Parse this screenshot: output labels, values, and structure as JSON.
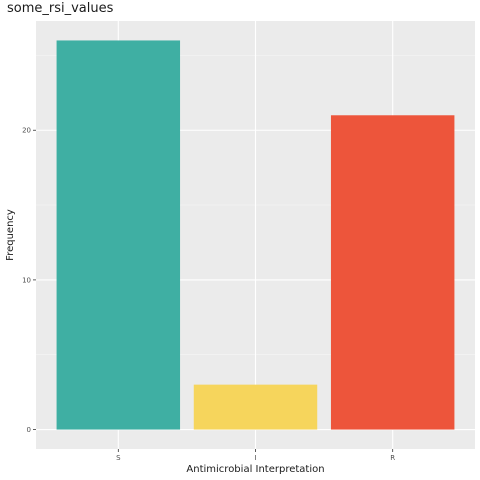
{
  "chart_data": {
    "type": "bar",
    "title": "some_rsi_values",
    "xlabel": "Antimicrobial Interpretation",
    "ylabel": "Frequency",
    "categories": [
      "S",
      "I",
      "R"
    ],
    "values": [
      26,
      3,
      21
    ],
    "colors": [
      "#3fafa3",
      "#f6d55c",
      "#ed553b"
    ],
    "ylim": [
      -1.3,
      27.3
    ],
    "yticks": [
      0,
      10,
      20
    ],
    "grid": true,
    "background": "#ebebeb",
    "legend": "none"
  }
}
